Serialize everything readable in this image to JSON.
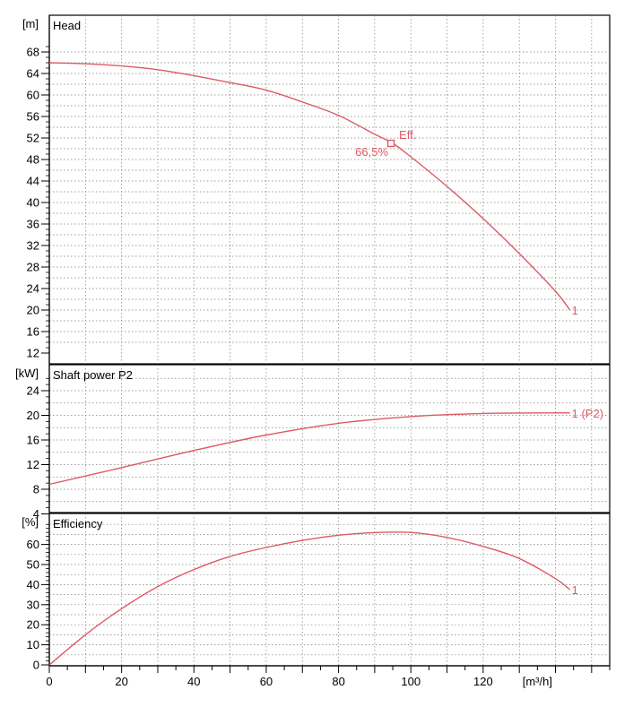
{
  "chart_data": [
    {
      "type": "line",
      "title": "Head",
      "unit_label": "[m]",
      "ylim": [
        12,
        68
      ],
      "yticks": [
        12,
        16,
        20,
        24,
        28,
        32,
        36,
        40,
        44,
        48,
        52,
        56,
        60,
        64,
        68
      ],
      "ytick_labels": [
        "12",
        "16",
        "20",
        "24",
        "28",
        "32",
        "36",
        "40",
        "44",
        "48",
        "52",
        "56",
        "60",
        "64",
        "68"
      ],
      "grid": true,
      "color": "#dc5a64",
      "series": [
        {
          "label": "1",
          "x": [
            0,
            10,
            20,
            30,
            40,
            50,
            60,
            70,
            80,
            90,
            95,
            100,
            110,
            120,
            130,
            140,
            144
          ],
          "y": [
            66,
            65.8,
            65.4,
            64.7,
            63.6,
            62.3,
            60.9,
            58.7,
            56.2,
            52.7,
            51.0,
            48.5,
            43.0,
            37.0,
            30.5,
            23.5,
            20.0
          ]
        }
      ],
      "marker": {
        "x": 94.5,
        "y": 51.0,
        "label_title": "Eff.",
        "label_value": "66,5%"
      }
    },
    {
      "type": "line",
      "title": "Shaft power P2",
      "unit_label": "[kW]",
      "ylim": [
        4,
        26
      ],
      "yticks": [
        4,
        8,
        12,
        16,
        20,
        24
      ],
      "ytick_labels": [
        "4",
        "8",
        "12",
        "16",
        "20",
        "24"
      ],
      "grid": true,
      "color": "#dc5a64",
      "series": [
        {
          "label": "1 (P2)",
          "x": [
            0,
            20,
            40,
            60,
            80,
            100,
            120,
            140,
            144
          ],
          "y": [
            8.8,
            11.5,
            14.3,
            16.8,
            18.7,
            19.8,
            20.3,
            20.4,
            20.4
          ]
        }
      ]
    },
    {
      "type": "line",
      "title": "Efficiency",
      "unit_label": "[%]",
      "ylim": [
        0,
        70
      ],
      "yticks": [
        0,
        10,
        20,
        30,
        40,
        50,
        60
      ],
      "ytick_labels": [
        "0",
        "10",
        "20",
        "30",
        "40",
        "50",
        "60"
      ],
      "grid": true,
      "color": "#dc5a64",
      "series": [
        {
          "label": "1",
          "x": [
            0,
            10,
            20,
            30,
            40,
            50,
            60,
            70,
            80,
            90,
            100,
            110,
            120,
            130,
            140,
            144
          ],
          "y": [
            0,
            15,
            28,
            39,
            47.5,
            54,
            58.5,
            62,
            64.6,
            65.9,
            66.0,
            63.5,
            59,
            53,
            43,
            37.5
          ]
        }
      ]
    }
  ],
  "x_axis": {
    "unit_label": "[m³/h]",
    "xlim": [
      0,
      155
    ],
    "ticks": [
      0,
      20,
      40,
      60,
      80,
      100,
      120
    ],
    "tick_labels": [
      "0",
      "20",
      "40",
      "60",
      "80",
      "100",
      "120"
    ]
  }
}
